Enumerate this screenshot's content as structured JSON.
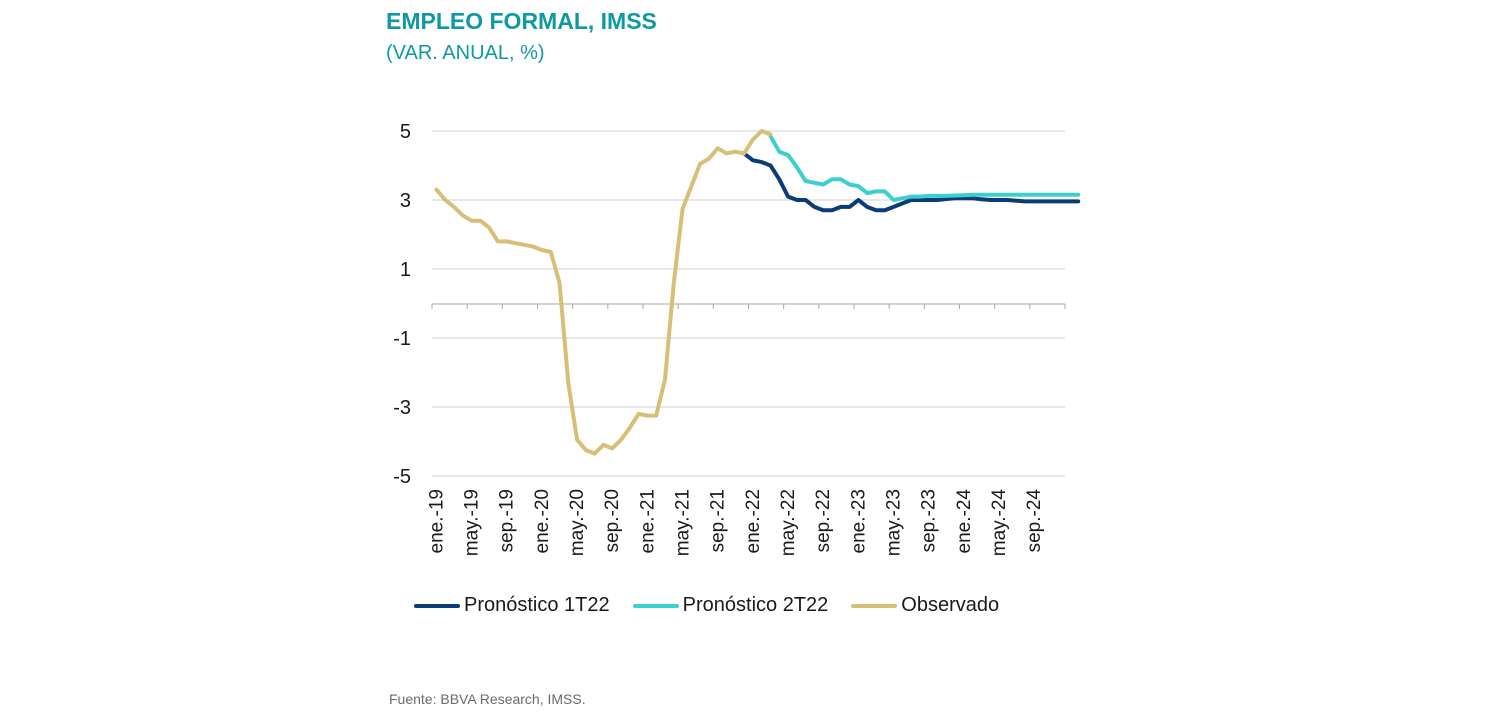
{
  "title": "EMPLEO FORMAL, IMSS",
  "subtitle": "(VAR. ANUAL, %)",
  "source": "Fuente: BBVA Research, IMSS.",
  "colors": {
    "title": "#0d9aa3",
    "pronostico_1t22": "#0b3c78",
    "pronostico_2t22": "#3ccfcf",
    "observado": "#d8bf78",
    "grid": "#d0d0d0"
  },
  "chart_data": {
    "type": "line",
    "title": "EMPLEO FORMAL, IMSS",
    "subtitle": "(VAR. ANUAL, %)",
    "xlabel": "",
    "ylabel": "",
    "ylim": [
      -5,
      5
    ],
    "yticks": [
      5,
      3,
      1,
      -1,
      -3,
      -5
    ],
    "ytick_labels": [
      "5",
      "3",
      "1",
      "-1",
      "-3",
      "-5"
    ],
    "x_range": [
      "ene.-19",
      "dic.-24"
    ],
    "xtick_labels": [
      "ene.-19",
      "may.-19",
      "sep.-19",
      "ene.-20",
      "may.-20",
      "sep.-20",
      "ene.-21",
      "may.-21",
      "sep.-21",
      "ene.-22",
      "may.-22",
      "sep.-22",
      "ene.-23",
      "may.-23",
      "sep.-23",
      "ene.-24",
      "may.-24",
      "sep.-24"
    ],
    "grid": true,
    "legend_position": "bottom",
    "series": [
      {
        "name": "Pronóstico 1T22",
        "color": "#0b3c78",
        "start": "dic.-21",
        "values": [
          4.35,
          4.15,
          4.1,
          4.0,
          3.6,
          3.1,
          3.0,
          3.0,
          2.8,
          2.7,
          2.7,
          2.8,
          2.8,
          3.0,
          2.8,
          2.7,
          2.7,
          2.8,
          2.9,
          3.0,
          3.0,
          3.0,
          3.0,
          3.03,
          3.05,
          3.05,
          3.05,
          3.02,
          3.0,
          3.0,
          3.0,
          2.98,
          2.96,
          2.96,
          2.96,
          2.96,
          2.96,
          2.96,
          2.96
        ]
      },
      {
        "name": "Pronóstico 2T22",
        "color": "#3ccfcf",
        "start": "mar.-22",
        "values": [
          4.85,
          4.4,
          4.3,
          3.95,
          3.55,
          3.5,
          3.45,
          3.6,
          3.6,
          3.45,
          3.4,
          3.2,
          3.25,
          3.25,
          3.0,
          3.05,
          3.1,
          3.1,
          3.12,
          3.12,
          3.12,
          3.13,
          3.14,
          3.15,
          3.15,
          3.15,
          3.15,
          3.15,
          3.15,
          3.15,
          3.15,
          3.15,
          3.15,
          3.15,
          3.15,
          3.15
        ]
      },
      {
        "name": "Observado",
        "color": "#d8bf78",
        "start": "ene.-19",
        "values": [
          3.3,
          3.0,
          2.8,
          2.55,
          2.4,
          2.4,
          2.2,
          1.8,
          1.8,
          1.75,
          1.7,
          1.65,
          1.55,
          1.5,
          0.6,
          -2.3,
          -3.95,
          -4.25,
          -4.35,
          -4.1,
          -4.2,
          -3.95,
          -3.6,
          -3.2,
          -3.25,
          -3.25,
          -2.2,
          0.6,
          2.75,
          3.4,
          4.05,
          4.2,
          4.5,
          4.35,
          4.4,
          4.35,
          4.75,
          5.0,
          4.9
        ]
      }
    ]
  }
}
